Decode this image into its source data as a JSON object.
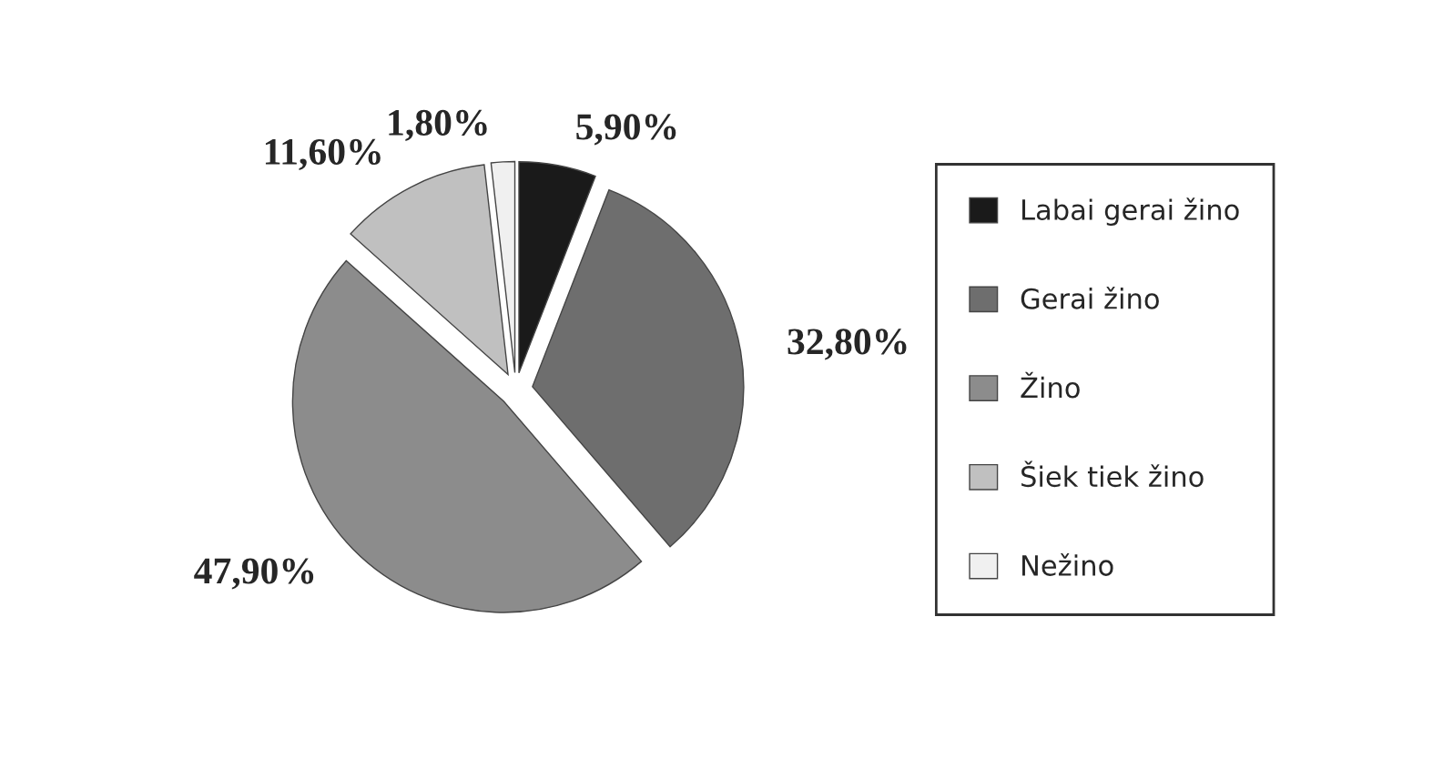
{
  "chart_data": {
    "type": "pie",
    "categories": [
      "Labai gerai žino",
      "Gerai žino",
      "Žino",
      "Šiek tiek žino",
      "Nežino"
    ],
    "values": [
      5.9,
      32.8,
      47.9,
      11.6,
      1.8
    ],
    "value_labels": [
      "5,90%",
      "32,80%",
      "47,90%",
      "11,60%",
      "1,80%"
    ],
    "colors": [
      "#1a1a1a",
      "#6e6e6e",
      "#8c8c8c",
      "#c0c0c0",
      "#f0f0f0"
    ],
    "legend": "right"
  }
}
